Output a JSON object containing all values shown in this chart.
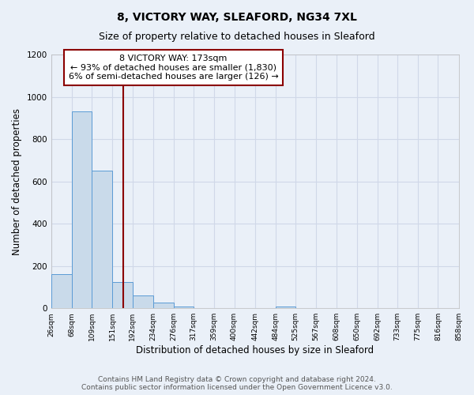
{
  "title": "8, VICTORY WAY, SLEAFORD, NG34 7XL",
  "subtitle": "Size of property relative to detached houses in Sleaford",
  "xlabel": "Distribution of detached houses by size in Sleaford",
  "ylabel": "Number of detached properties",
  "bar_edges": [
    26,
    68,
    109,
    151,
    192,
    234,
    276,
    317,
    359,
    400,
    442,
    484,
    525,
    567,
    608,
    650,
    692,
    733,
    775,
    816,
    858
  ],
  "bar_heights": [
    160,
    930,
    650,
    125,
    60,
    28,
    10,
    0,
    0,
    0,
    0,
    10,
    0,
    0,
    0,
    0,
    0,
    0,
    0,
    0
  ],
  "bar_color": "#c9daea",
  "bar_edge_color": "#5b9bd5",
  "bg_color": "#eaf0f8",
  "grid_color": "#d0d8e8",
  "vline_x": 173,
  "vline_color": "#8b0000",
  "annotation_line1": "8 VICTORY WAY: 173sqm",
  "annotation_line2": "← 93% of detached houses are smaller (1,830)",
  "annotation_line3": "6% of semi-detached houses are larger (126) →",
  "annotation_box_color": "#ffffff",
  "annotation_box_edge_color": "#8b0000",
  "ylim": [
    0,
    1200
  ],
  "yticks": [
    0,
    200,
    400,
    600,
    800,
    1000,
    1200
  ],
  "tick_labels": [
    "26sqm",
    "68sqm",
    "109sqm",
    "151sqm",
    "192sqm",
    "234sqm",
    "276sqm",
    "317sqm",
    "359sqm",
    "400sqm",
    "442sqm",
    "484sqm",
    "525sqm",
    "567sqm",
    "608sqm",
    "650sqm",
    "692sqm",
    "733sqm",
    "775sqm",
    "816sqm",
    "858sqm"
  ],
  "footer_text": "Contains HM Land Registry data © Crown copyright and database right 2024.\nContains public sector information licensed under the Open Government Licence v3.0.",
  "title_fontsize": 10,
  "subtitle_fontsize": 9,
  "annotation_fontsize": 8,
  "footer_fontsize": 6.5
}
